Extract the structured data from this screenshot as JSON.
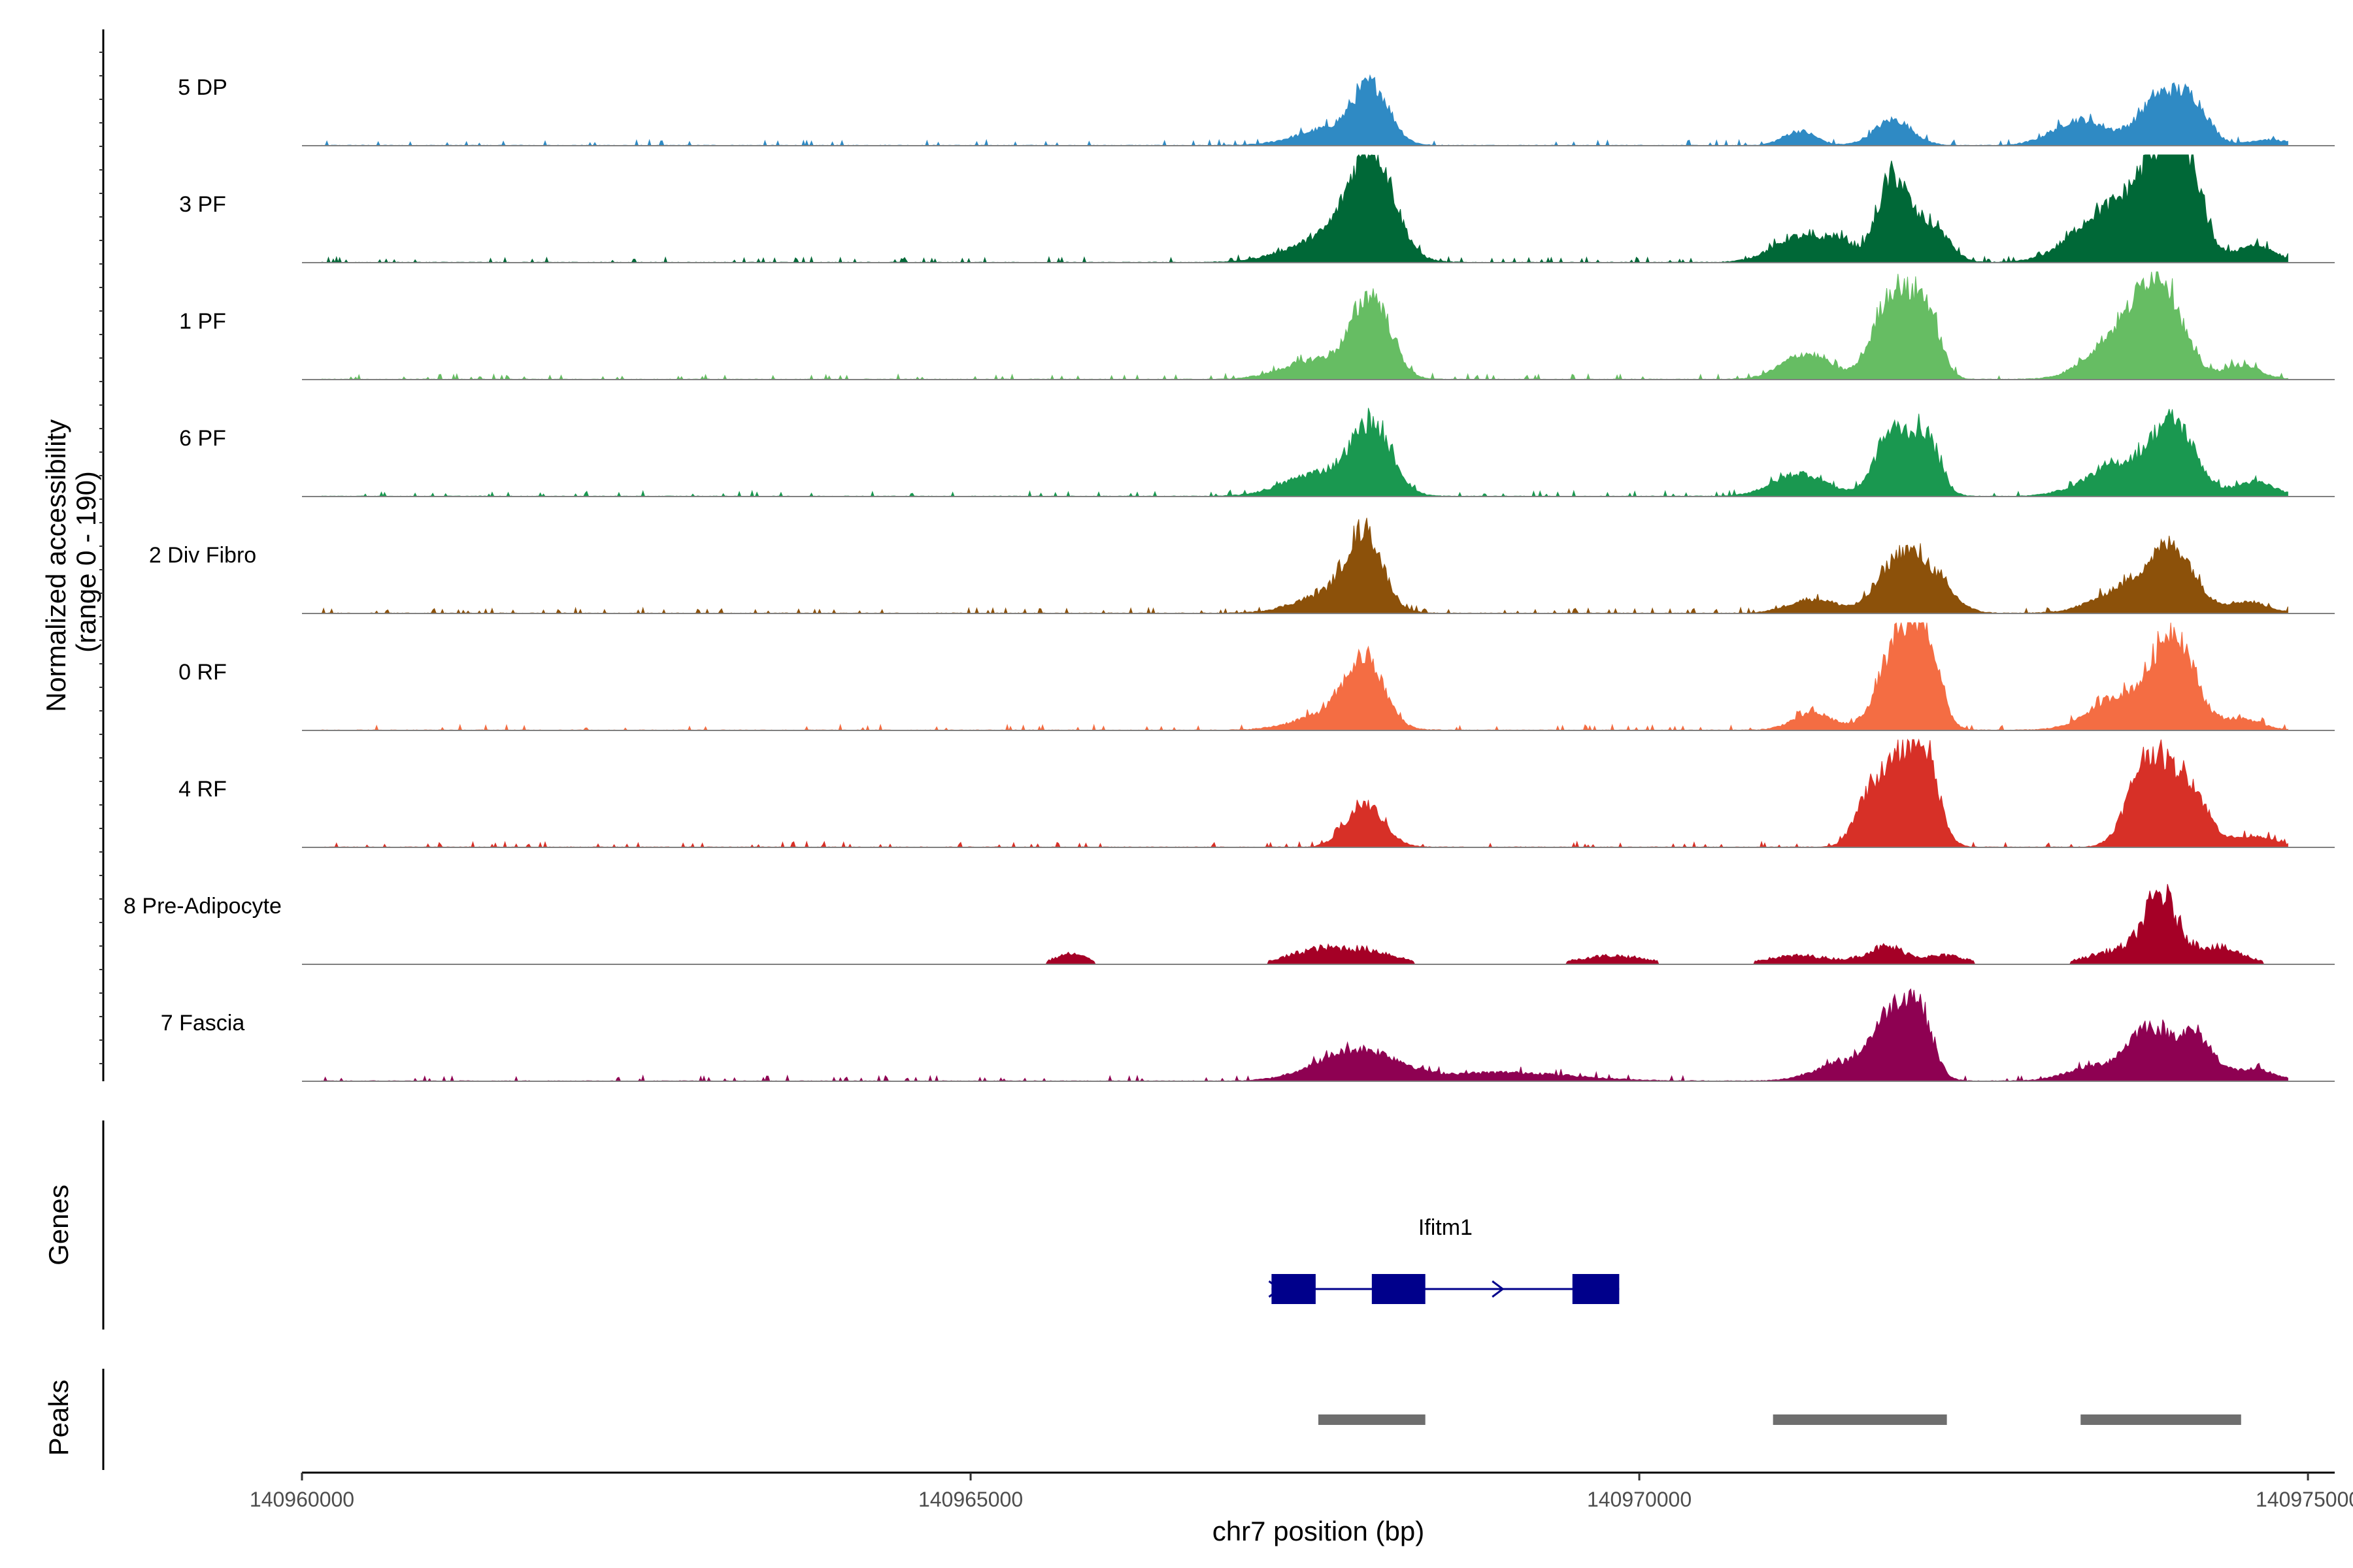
{
  "chart_data": {
    "type": "area",
    "title": "",
    "ylabel": "Normalized accessibility\n(range 0 - 190)",
    "ylabel_lines": [
      "Normalized accessibility",
      "(range 0 - 190)"
    ],
    "ylim": [
      0,
      190
    ],
    "xlabel": "chr7 position (bp)",
    "xlim": [
      140960000,
      140975200
    ],
    "x_ticks": [
      140960000,
      140965000,
      140970000,
      140975000
    ],
    "x_tick_labels": [
      "140960000",
      "140965000",
      "140970000",
      "140975000"
    ],
    "series": [
      {
        "name": "5 DP",
        "color": "#2F8AC4",
        "sparse": false,
        "peaks": [
          [
            140968000,
            95,
            130
          ],
          [
            140967700,
            30,
            250
          ],
          [
            140971200,
            25,
            120
          ],
          [
            140971900,
            45,
            140
          ],
          [
            140973300,
            45,
            200
          ],
          [
            140973900,
            85,
            160
          ],
          [
            140974150,
            60,
            120
          ],
          [
            140974700,
            10,
            150
          ]
        ]
      },
      {
        "name": "3 PF",
        "color": "#006837",
        "sparse": false,
        "peaks": [
          [
            140968000,
            180,
            160
          ],
          [
            140967700,
            45,
            300
          ],
          [
            140971200,
            45,
            200
          ],
          [
            140971500,
            30,
            100
          ],
          [
            140971900,
            150,
            120
          ],
          [
            140972200,
            60,
            120
          ],
          [
            140973500,
            90,
            250
          ],
          [
            140973900,
            160,
            170
          ],
          [
            140974100,
            120,
            120
          ],
          [
            140974600,
            30,
            150
          ]
        ]
      },
      {
        "name": "1 PF",
        "color": "#66BD63",
        "sparse": false,
        "peaks": [
          [
            140968000,
            140,
            140
          ],
          [
            140967600,
            35,
            250
          ],
          [
            140971250,
            45,
            180
          ],
          [
            140971900,
            155,
            140
          ],
          [
            140972150,
            110,
            100
          ],
          [
            140973600,
            80,
            220
          ],
          [
            140973900,
            155,
            160
          ],
          [
            140974500,
            25,
            140
          ]
        ]
      },
      {
        "name": "6 PF",
        "color": "#1A9850",
        "sparse": false,
        "peaks": [
          [
            140968000,
            120,
            150
          ],
          [
            140967600,
            40,
            250
          ],
          [
            140971200,
            40,
            200
          ],
          [
            140971900,
            115,
            130
          ],
          [
            140972150,
            95,
            100
          ],
          [
            140973600,
            55,
            250
          ],
          [
            140974000,
            120,
            160
          ],
          [
            140974600,
            25,
            150
          ]
        ]
      },
      {
        "name": "2 Div Fibro",
        "color": "#8C510A",
        "sparse": false,
        "peaks": [
          [
            140967950,
            125,
            130
          ],
          [
            140967700,
            35,
            250
          ],
          [
            140971300,
            25,
            180
          ],
          [
            140971950,
            95,
            160
          ],
          [
            140972200,
            50,
            150
          ],
          [
            140973700,
            50,
            250
          ],
          [
            140974000,
            95,
            160
          ],
          [
            140974550,
            20,
            150
          ]
        ]
      },
      {
        "name": "0 RF",
        "color": "#F46D43",
        "sparse": false,
        "peaks": [
          [
            140967950,
            110,
            140
          ],
          [
            140967700,
            30,
            250
          ],
          [
            140971300,
            30,
            150
          ],
          [
            140971950,
            155,
            150
          ],
          [
            140972150,
            120,
            100
          ],
          [
            140973600,
            60,
            220
          ],
          [
            140974000,
            165,
            150
          ],
          [
            140974500,
            20,
            150
          ]
        ]
      },
      {
        "name": "4 RF",
        "color": "#D73027",
        "sparse": false,
        "peaks": [
          [
            140967950,
            75,
            140
          ],
          [
            140971700,
            70,
            100
          ],
          [
            140971950,
            150,
            140
          ],
          [
            140972150,
            120,
            100
          ],
          [
            140973800,
            155,
            140
          ],
          [
            140974100,
            110,
            140
          ],
          [
            140974600,
            20,
            150
          ]
        ]
      },
      {
        "name": "8 Pre-Adipocyte",
        "color": "#A50026",
        "sparse": true,
        "peaks": [
          [
            140965750,
            18,
            120
          ],
          [
            140967600,
            25,
            220
          ],
          [
            140968000,
            20,
            200
          ],
          [
            140969800,
            15,
            250
          ],
          [
            140971200,
            15,
            250
          ],
          [
            140971850,
            30,
            150
          ],
          [
            140972300,
            15,
            150
          ],
          [
            140973600,
            25,
            220
          ],
          [
            140973900,
            110,
            120
          ],
          [
            140974300,
            30,
            200
          ]
        ]
      },
      {
        "name": "7 Fascia",
        "color": "#8E0152",
        "sparse": false,
        "peaks": [
          [
            140968000,
            40,
            250
          ],
          [
            140967700,
            25,
            250
          ],
          [
            140969000,
            15,
            500
          ],
          [
            140971500,
            30,
            200
          ],
          [
            140971900,
            120,
            150
          ],
          [
            140972100,
            90,
            100
          ],
          [
            140973400,
            25,
            200
          ],
          [
            140973800,
            90,
            150
          ],
          [
            140974150,
            80,
            140
          ],
          [
            140974600,
            20,
            150
          ]
        ]
      }
    ],
    "genes": [
      {
        "name": "Ifitm1",
        "start": 140967250,
        "end": 140969850,
        "strand": "+",
        "color": "#00008B",
        "exons": [
          [
            140967250,
            140967580
          ],
          [
            140968000,
            140968400
          ],
          [
            140969500,
            140969850
          ]
        ]
      }
    ],
    "peaks": [
      {
        "start": 140967600,
        "end": 140968400
      },
      {
        "start": 140971000,
        "end": 140972300
      },
      {
        "start": 140973300,
        "end": 140974500
      }
    ],
    "panel_labels": {
      "genes": "Genes",
      "peaks": "Peaks"
    }
  }
}
